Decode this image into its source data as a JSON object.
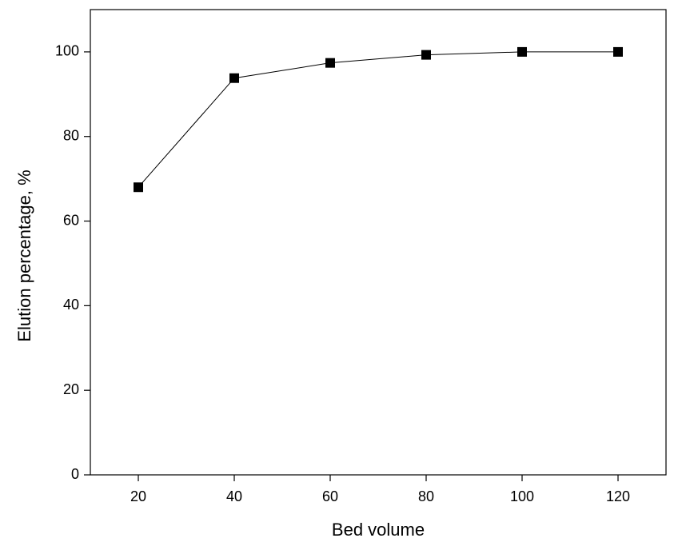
{
  "chart_data": {
    "type": "line",
    "x_label": "Bed volume",
    "y_label": "Elution percentage, %",
    "x": [
      20,
      40,
      60,
      80,
      100,
      120
    ],
    "series": [
      {
        "name": null,
        "color": "#000000",
        "values": [
          68,
          93.8,
          97.4,
          99.3,
          100,
          100
        ]
      }
    ],
    "xlim": [
      10,
      130
    ],
    "xticks": [
      20,
      40,
      60,
      80,
      100,
      120
    ],
    "ylim": [
      0,
      110
    ],
    "yticks": [
      0,
      20,
      40,
      60,
      80,
      100
    ],
    "grid": false,
    "marker": "square"
  }
}
